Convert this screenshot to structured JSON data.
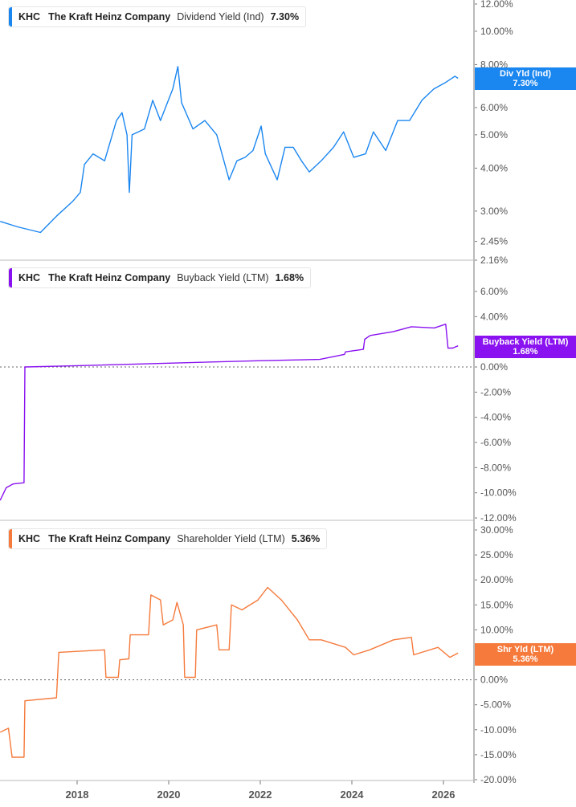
{
  "chart_data": [
    {
      "type": "line",
      "scale": "log",
      "ticker": "KHC",
      "company": "The Kraft Heinz Company",
      "metric": "Dividend Yield (Ind)",
      "current_value": "7.30%",
      "tag_label": "Div Yld (Ind)",
      "color": "#1a86f0",
      "yticks": [
        "12.00%",
        "10.00%",
        "8.00%",
        "7.00%",
        "6.00%",
        "5.00%",
        "4.00%",
        "3.00%",
        "2.45%",
        "2.16%"
      ],
      "ytick_values": [
        12,
        10,
        8,
        7,
        6,
        5,
        4,
        3,
        2.45,
        2.16
      ],
      "ylim": [
        2.16,
        12
      ],
      "points": [
        [
          2016.32,
          2.8
        ],
        [
          2016.7,
          2.7
        ],
        [
          2017.2,
          2.6
        ],
        [
          2017.55,
          2.9
        ],
        [
          2017.9,
          3.2
        ],
        [
          2018.07,
          3.4
        ],
        [
          2018.16,
          4.1
        ],
        [
          2018.35,
          4.4
        ],
        [
          2018.6,
          4.2
        ],
        [
          2018.86,
          5.5
        ],
        [
          2018.98,
          5.8
        ],
        [
          2019.09,
          5.0
        ],
        [
          2019.14,
          3.4
        ],
        [
          2019.2,
          5.0
        ],
        [
          2019.47,
          5.2
        ],
        [
          2019.65,
          6.3
        ],
        [
          2019.82,
          5.5
        ],
        [
          2020.09,
          6.8
        ],
        [
          2020.2,
          7.9
        ],
        [
          2020.28,
          6.2
        ],
        [
          2020.53,
          5.2
        ],
        [
          2020.79,
          5.5
        ],
        [
          2021.05,
          5.0
        ],
        [
          2021.32,
          3.7
        ],
        [
          2021.49,
          4.2
        ],
        [
          2021.67,
          4.3
        ],
        [
          2021.84,
          4.5
        ],
        [
          2022.02,
          5.3
        ],
        [
          2022.11,
          4.4
        ],
        [
          2022.37,
          3.7
        ],
        [
          2022.54,
          4.6
        ],
        [
          2022.72,
          4.6
        ],
        [
          2022.9,
          4.2
        ],
        [
          2023.07,
          3.9
        ],
        [
          2023.33,
          4.2
        ],
        [
          2023.6,
          4.6
        ],
        [
          2023.82,
          5.1
        ],
        [
          2024.04,
          4.3
        ],
        [
          2024.3,
          4.4
        ],
        [
          2024.47,
          5.1
        ],
        [
          2024.74,
          4.5
        ],
        [
          2025.0,
          5.5
        ],
        [
          2025.26,
          5.5
        ],
        [
          2025.53,
          6.3
        ],
        [
          2025.79,
          6.8
        ],
        [
          2026.05,
          7.1
        ],
        [
          2026.25,
          7.4
        ],
        [
          2026.32,
          7.3
        ]
      ]
    },
    {
      "type": "line",
      "scale": "linear",
      "ticker": "KHC",
      "company": "The Kraft Heinz Company",
      "metric": "Buyback Yield (LTM)",
      "current_value": "1.68%",
      "tag_label": "Buyback Yield (LTM)",
      "color": "#8a12f0",
      "yticks": [
        "6.00%",
        "4.00%",
        "0.00%",
        "-2.00%",
        "-4.00%",
        "-6.00%",
        "-8.00%",
        "-10.00%",
        "-12.00%"
      ],
      "ytick_values": [
        6,
        4,
        0,
        -2,
        -4,
        -6,
        -8,
        -10,
        -12
      ],
      "ylim": [
        -12,
        8.5
      ],
      "zero_line": true,
      "points": [
        [
          2016.32,
          -10.6
        ],
        [
          2016.45,
          -9.6
        ],
        [
          2016.6,
          -9.3
        ],
        [
          2016.84,
          -9.2
        ],
        [
          2016.86,
          0
        ],
        [
          2018,
          0.1
        ],
        [
          2020,
          0.3
        ],
        [
          2022,
          0.5
        ],
        [
          2023.3,
          0.6
        ],
        [
          2023.84,
          1.0
        ],
        [
          2023.86,
          1.2
        ],
        [
          2024.25,
          1.4
        ],
        [
          2024.28,
          2.2
        ],
        [
          2024.4,
          2.5
        ],
        [
          2024.9,
          2.8
        ],
        [
          2025.3,
          3.2
        ],
        [
          2025.8,
          3.1
        ],
        [
          2026.05,
          3.4
        ],
        [
          2026.1,
          1.5
        ],
        [
          2026.2,
          1.5
        ],
        [
          2026.32,
          1.68
        ]
      ]
    },
    {
      "type": "line",
      "scale": "linear",
      "ticker": "KHC",
      "company": "The Kraft Heinz Company",
      "metric": "Shareholder Yield (LTM)",
      "current_value": "5.36%",
      "tag_label": "Shr Yld (LTM)",
      "color": "#f57a3c",
      "yticks": [
        "30.00%",
        "25.00%",
        "20.00%",
        "15.00%",
        "10.00%",
        "5.00%",
        "0.00%",
        "-5.00%",
        "-10.00%",
        "-15.00%",
        "-20.00%"
      ],
      "ytick_values": [
        30,
        25,
        20,
        15,
        10,
        5,
        0,
        -5,
        -10,
        -15,
        -20
      ],
      "ylim": [
        -20,
        30
      ],
      "zero_line": true,
      "points": [
        [
          2016.32,
          -10.5
        ],
        [
          2016.5,
          -9.7
        ],
        [
          2016.58,
          -15.5
        ],
        [
          2016.84,
          -15.5
        ],
        [
          2016.86,
          -4.2
        ],
        [
          2017.55,
          -3.6
        ],
        [
          2017.6,
          5.5
        ],
        [
          2018.6,
          6.0
        ],
        [
          2018.63,
          0.5
        ],
        [
          2018.9,
          0.5
        ],
        [
          2018.93,
          4.0
        ],
        [
          2019.13,
          4.2
        ],
        [
          2019.16,
          9.0
        ],
        [
          2019.56,
          9.0
        ],
        [
          2019.61,
          17.0
        ],
        [
          2019.82,
          16.0
        ],
        [
          2019.88,
          11.0
        ],
        [
          2020.09,
          12.0
        ],
        [
          2020.18,
          15.5
        ],
        [
          2020.32,
          11.0
        ],
        [
          2020.35,
          0.5
        ],
        [
          2020.58,
          0.5
        ],
        [
          2020.61,
          10.0
        ],
        [
          2021.05,
          11.0
        ],
        [
          2021.1,
          6.0
        ],
        [
          2021.32,
          6.0
        ],
        [
          2021.37,
          15.0
        ],
        [
          2021.6,
          14.0
        ],
        [
          2021.95,
          16.0
        ],
        [
          2022.16,
          18.5
        ],
        [
          2022.46,
          16.0
        ],
        [
          2022.81,
          12.0
        ],
        [
          2023.07,
          8.0
        ],
        [
          2023.33,
          8.0
        ],
        [
          2023.86,
          6.5
        ],
        [
          2024.04,
          5.0
        ],
        [
          2024.39,
          6.0
        ],
        [
          2024.91,
          8.0
        ],
        [
          2025.3,
          8.5
        ],
        [
          2025.35,
          5.0
        ],
        [
          2025.88,
          6.5
        ],
        [
          2026.14,
          4.5
        ],
        [
          2026.32,
          5.36
        ]
      ]
    }
  ],
  "x_axis": {
    "ticks": [
      "2018",
      "2020",
      "2022",
      "2024",
      "2026"
    ],
    "tick_values": [
      2018,
      2020,
      2022,
      2024,
      2026
    ],
    "xlim": [
      2016.32,
      2026.7
    ]
  }
}
